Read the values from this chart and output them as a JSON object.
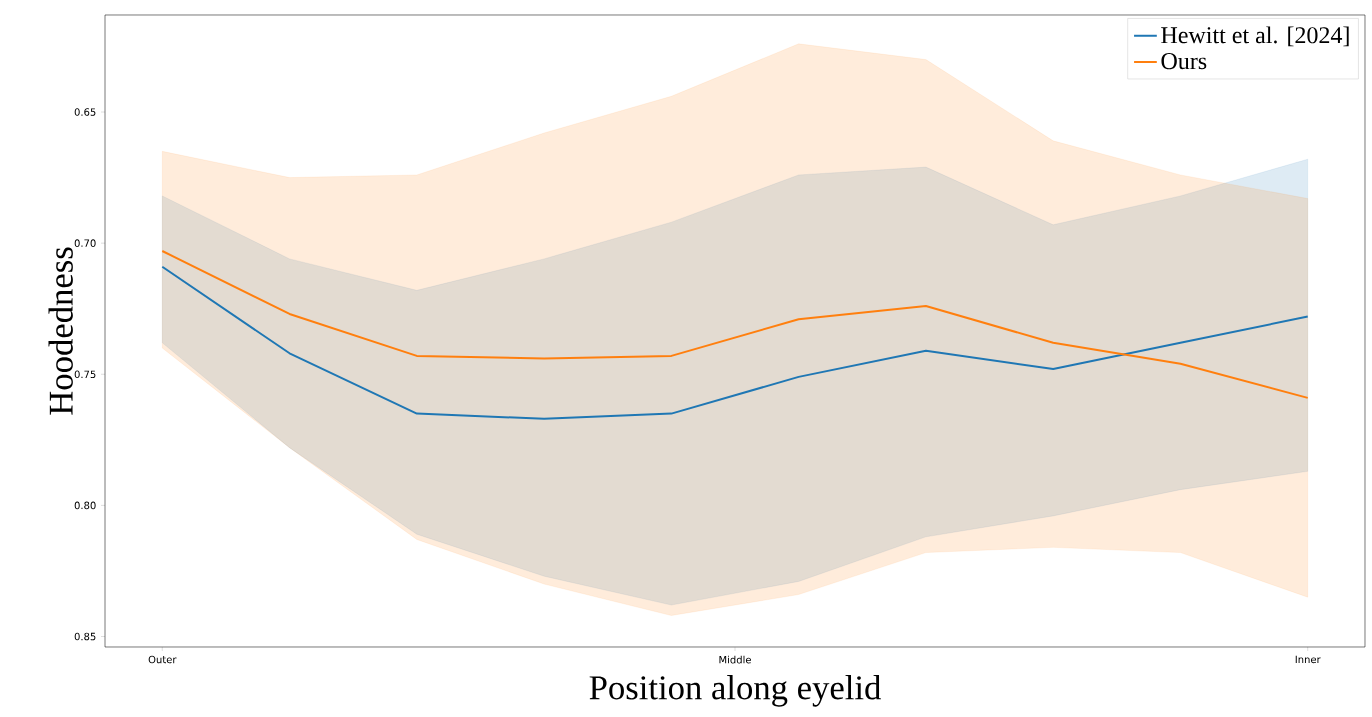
{
  "chart_data": {
    "type": "line",
    "xlabel": "Position along eyelid",
    "ylabel": "Hoodedness",
    "ylim": [
      0.854,
      0.613
    ],
    "categories": [
      "Outer",
      null,
      null,
      null,
      null,
      null,
      null,
      null,
      null,
      "Inner"
    ],
    "annotations": [
      "Middle"
    ],
    "yticks": [
      {
        "value": 0.65,
        "label": "0.65"
      },
      {
        "value": 0.7,
        "label": "0.70"
      },
      {
        "value": 0.75,
        "label": "0.75"
      },
      {
        "value": 0.8,
        "label": "0.80"
      },
      {
        "value": 0.85,
        "label": "0.85"
      }
    ],
    "legend": "top right",
    "grid": false,
    "marker": "none",
    "line_style": "solid",
    "series": [
      {
        "name": "Hewitt et al. [2024]",
        "color": "#1f77b4",
        "values": [
          0.709,
          0.742,
          0.765,
          0.767,
          0.765,
          0.751,
          0.741,
          0.748,
          0.738,
          0.728
        ],
        "lower": [
          0.738,
          0.778,
          0.811,
          0.827,
          0.838,
          0.829,
          0.812,
          0.804,
          0.794,
          0.787
        ],
        "upper": [
          0.682,
          0.706,
          0.718,
          0.706,
          0.692,
          0.674,
          0.671,
          0.693,
          0.682,
          0.668
        ]
      },
      {
        "name": "Ours",
        "color": "#ff7f0e",
        "values": [
          0.703,
          0.727,
          0.743,
          0.744,
          0.743,
          0.729,
          0.724,
          0.738,
          0.746,
          0.759
        ],
        "lower": [
          0.74,
          0.778,
          0.813,
          0.83,
          0.842,
          0.834,
          0.818,
          0.816,
          0.818,
          0.835
        ],
        "upper": [
          0.665,
          0.675,
          0.674,
          0.658,
          0.644,
          0.624,
          0.63,
          0.661,
          0.674,
          0.683
        ]
      }
    ]
  }
}
